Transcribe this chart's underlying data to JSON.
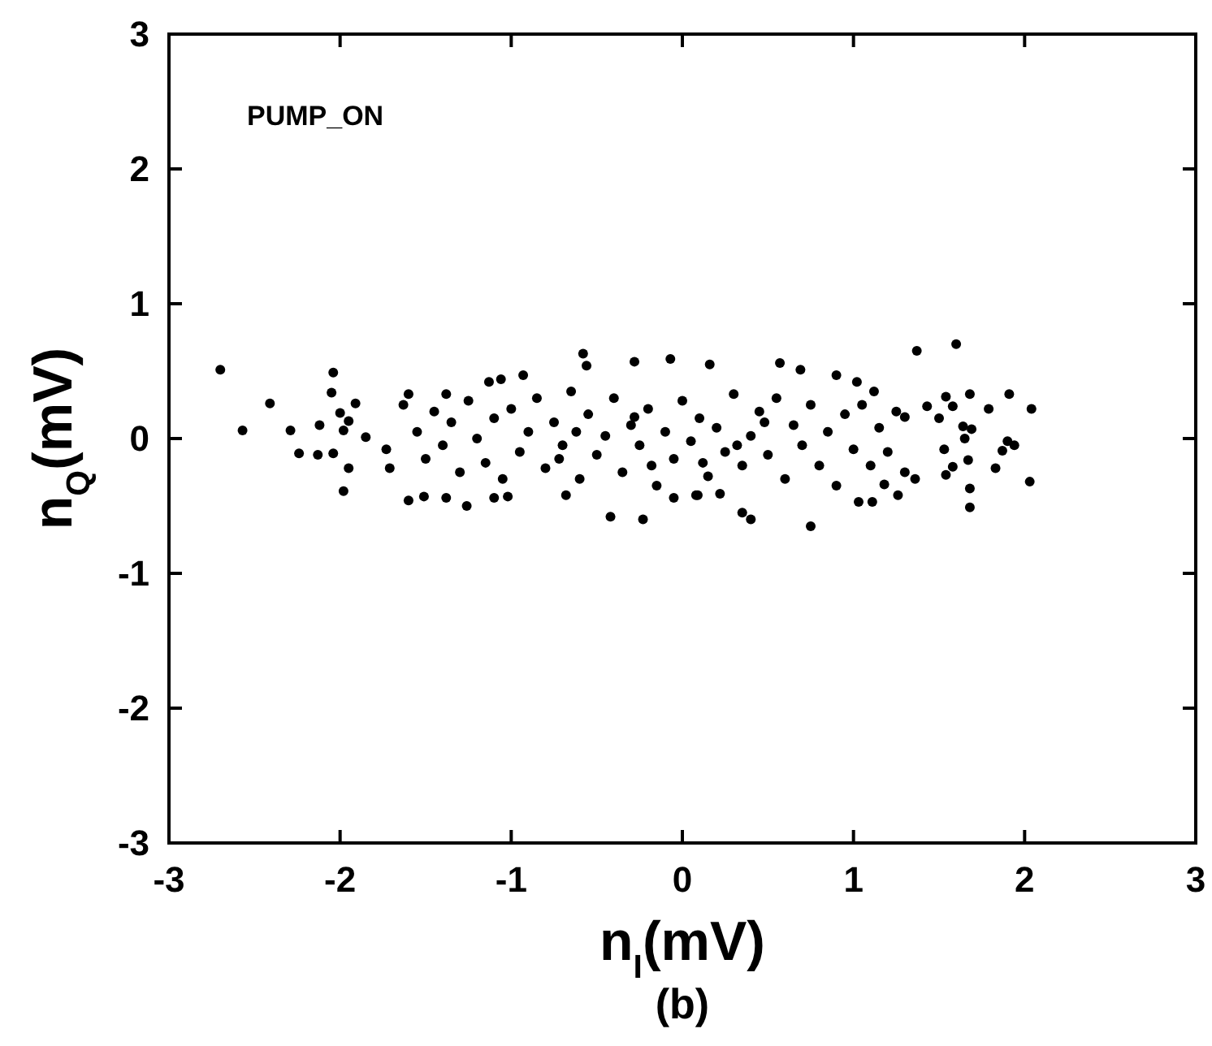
{
  "chart_data": {
    "type": "scatter",
    "xlabel": "n$_{I}$(mV)",
    "ylabel": "n$_{Q}$(mV)",
    "annotations": [
      "PUMP_ON",
      "(b)"
    ],
    "xlim": [
      -3,
      3
    ],
    "ylim": [
      -3,
      3
    ],
    "xticks": [
      -3,
      -2,
      -1,
      0,
      1,
      2,
      3
    ],
    "yticks": [
      -3,
      -2,
      -1,
      0,
      1,
      2,
      3
    ],
    "grid": false,
    "marker": "circle",
    "series": [
      {
        "color": "#000000",
        "x": [
          -2.7,
          -2.57,
          -2.41,
          -2.29,
          -2.24,
          -2.13,
          -2.12,
          -2.04,
          -2.05,
          -2.04,
          -2.0,
          -1.98,
          -1.95,
          -1.95,
          -1.98,
          -1.91,
          -1.85,
          -1.73,
          -1.71,
          1.37,
          1.6,
          1.68,
          1.79,
          1.91,
          2.04,
          1.9,
          1.94,
          1.87,
          1.83,
          2.03,
          1.68,
          1.68,
          1.67,
          1.65,
          1.69,
          1.64,
          1.58,
          1.54,
          1.5,
          1.43,
          1.54,
          1.58,
          1.53,
          0.75,
          0.4,
          0.35,
          1.11,
          1.26,
          1.03,
          0.57,
          0.16,
          0.69,
          0.9,
          1.02,
          1.12,
          1.3,
          1.36,
          1.18,
          0.08,
          0.22,
          -0.58,
          -0.56,
          -0.28,
          -0.07,
          -1.13,
          -1.06,
          -0.93,
          -1.6,
          -1.38,
          -1.63,
          -1.6,
          -1.51,
          -1.38,
          -1.26,
          -1.1,
          -1.02,
          -0.42,
          -0.23,
          -0.68,
          -0.05,
          0.09,
          -1.55,
          -1.5,
          -1.45,
          -1.4,
          -1.35,
          -1.3,
          -1.25,
          -1.2,
          -1.15,
          -1.1,
          -1.05,
          -1.0,
          -0.95,
          -0.9,
          -0.85,
          -0.8,
          -0.75,
          -0.7,
          -0.65,
          -0.6,
          -0.55,
          -0.5,
          -0.45,
          -0.4,
          -0.35,
          -0.3,
          -0.25,
          -0.2,
          -0.15,
          -0.1,
          -0.05,
          0.0,
          0.05,
          0.1,
          0.15,
          0.2,
          0.25,
          0.3,
          0.35,
          0.4,
          0.45,
          0.5,
          0.55,
          0.6,
          0.65,
          0.7,
          0.75,
          0.8,
          0.85,
          0.9,
          0.95,
          1.0,
          1.05,
          1.1,
          1.15,
          1.2,
          1.25,
          1.3,
          -0.72,
          -0.28,
          0.12,
          0.48,
          -0.62,
          -0.18,
          0.32
        ],
        "values": [
          0.51,
          0.06,
          0.26,
          0.06,
          -0.11,
          -0.12,
          0.1,
          0.49,
          0.34,
          -0.11,
          0.19,
          0.06,
          0.13,
          -0.22,
          -0.39,
          0.26,
          0.01,
          -0.08,
          -0.22,
          0.65,
          0.7,
          0.33,
          0.22,
          0.33,
          0.22,
          -0.02,
          -0.05,
          -0.09,
          -0.22,
          -0.32,
          -0.37,
          -0.51,
          -0.16,
          0.0,
          0.07,
          0.09,
          0.24,
          0.31,
          0.15,
          0.24,
          -0.27,
          -0.21,
          -0.08,
          -0.65,
          -0.6,
          -0.55,
          -0.47,
          -0.42,
          -0.47,
          0.56,
          0.55,
          0.51,
          0.47,
          0.42,
          0.35,
          0.16,
          -0.3,
          -0.34,
          -0.42,
          -0.41,
          0.63,
          0.54,
          0.57,
          0.59,
          0.42,
          0.44,
          0.47,
          0.33,
          0.33,
          0.25,
          -0.46,
          -0.43,
          -0.44,
          -0.5,
          -0.44,
          -0.43,
          -0.58,
          -0.6,
          -0.42,
          -0.44,
          -0.42,
          0.05,
          -0.15,
          0.2,
          -0.05,
          0.12,
          -0.25,
          0.28,
          0.0,
          -0.18,
          0.15,
          -0.3,
          0.22,
          -0.1,
          0.05,
          0.3,
          -0.22,
          0.12,
          -0.05,
          0.35,
          -0.3,
          0.18,
          -0.12,
          0.02,
          0.3,
          -0.25,
          0.1,
          -0.05,
          0.22,
          -0.35,
          0.05,
          -0.15,
          0.28,
          -0.02,
          0.15,
          -0.28,
          0.08,
          -0.1,
          0.33,
          -0.2,
          0.02,
          0.2,
          -0.12,
          0.3,
          -0.3,
          0.1,
          -0.05,
          0.25,
          -0.2,
          0.05,
          -0.35,
          0.18,
          -0.08,
          0.25,
          -0.2,
          0.08,
          -0.1,
          0.2,
          -0.25,
          -0.15,
          0.16,
          -0.18,
          0.12,
          0.05,
          -0.2,
          -0.05
        ]
      }
    ]
  }
}
